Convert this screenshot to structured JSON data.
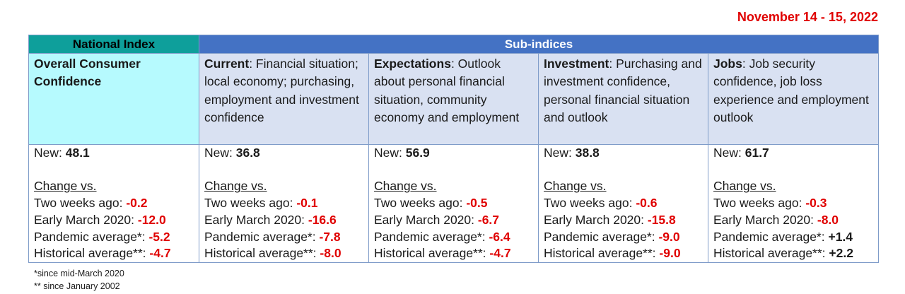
{
  "date_range": "November 14 - 15, 2022",
  "headers": {
    "national": "National Index",
    "sub": "Sub-indices"
  },
  "columns": [
    {
      "title": "Overall Consumer Confidence",
      "desc": "",
      "new": "48.1",
      "two_weeks": "-0.2",
      "early_march": "-12.0",
      "pandemic": "-5.2",
      "historical": "-4.7"
    },
    {
      "title": "Current",
      "desc": ":  Financial situation; local economy; purchasing, employment and investment confidence",
      "new": "36.8",
      "two_weeks": "-0.1",
      "early_march": "-16.6",
      "pandemic": "-7.8",
      "historical": "-8.0"
    },
    {
      "title": "Expectations",
      "desc": ":  Outlook about personal financial situation, community economy and employment",
      "new": "56.9",
      "two_weeks": "-0.5",
      "early_march": "-6.7",
      "pandemic": "-6.4",
      "historical": "-4.7"
    },
    {
      "title": "Investment",
      "desc": ": Purchasing and investment confidence, personal financial situation and outlook",
      "new": "38.8",
      "two_weeks": "-0.6",
      "early_march": "-15.8",
      "pandemic": "-9.0",
      "historical": "-9.0"
    },
    {
      "title": "Jobs",
      "desc": ": Job security confidence, job loss experience and employment outlook",
      "new": "61.7",
      "two_weeks": "-0.3",
      "early_march": "-8.0",
      "pandemic": "+1.4",
      "historical": "+2.2"
    }
  ],
  "labels": {
    "new": "New: ",
    "change_vs": "Change vs.",
    "two_weeks": "Two weeks ago: ",
    "early_march": "Early March 2020: ",
    "pandemic": "Pandemic average*: ",
    "historical": "Historical average**: "
  },
  "footnotes": [
    "*since mid-March 2020",
    "** since January 2002"
  ],
  "colors": {
    "negative": "#e00000",
    "national_header": "#0e9f9b",
    "sub_header": "#4472c4",
    "national_cell": "#b6fafe",
    "sub_cell": "#d9e1f2"
  }
}
